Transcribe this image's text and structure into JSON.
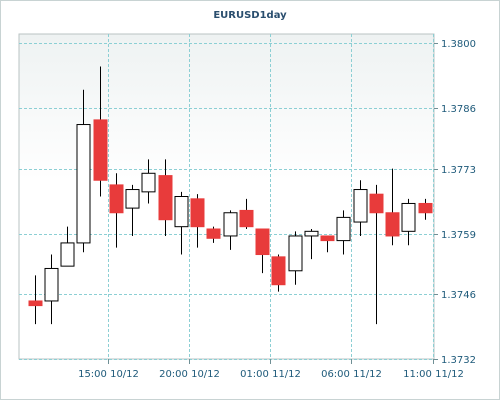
{
  "chart_data": {
    "type": "candlestick",
    "title": "EURUSD1day",
    "xlabel": "",
    "ylabel": "",
    "ylim": [
      1.3732,
      1.3802
    ],
    "yticks": [
      "1.3800",
      "1.3786",
      "1.3773",
      "1.3759",
      "1.3746",
      "1.3732"
    ],
    "xticks": [
      "15:00 10/12",
      "20:00 10/12",
      "01:00 11/12",
      "06:00 11/12",
      "11:00 11/12"
    ],
    "xtick_positions": [
      4.5,
      9.5,
      14.5,
      19.5,
      24.5
    ],
    "grid": true,
    "y_axis_side": "right",
    "bullish_color": "#ffffff",
    "bearish_color": "#e83b3b",
    "outline_color": "#000000",
    "candles": [
      {
        "open": 1.37445,
        "high": 1.375,
        "low": 1.37395,
        "close": 1.37435
      },
      {
        "open": 1.37445,
        "high": 1.37545,
        "low": 1.37395,
        "close": 1.37515
      },
      {
        "open": 1.3752,
        "high": 1.37605,
        "low": 1.3752,
        "close": 1.3757
      },
      {
        "open": 1.3757,
        "high": 1.379,
        "low": 1.3755,
        "close": 1.37825
      },
      {
        "open": 1.37835,
        "high": 1.3795,
        "low": 1.3767,
        "close": 1.37705
      },
      {
        "open": 1.37695,
        "high": 1.3772,
        "low": 1.3756,
        "close": 1.37635
      },
      {
        "open": 1.37645,
        "high": 1.37695,
        "low": 1.37585,
        "close": 1.37685
      },
      {
        "open": 1.3768,
        "high": 1.3775,
        "low": 1.37655,
        "close": 1.3772
      },
      {
        "open": 1.37715,
        "high": 1.3775,
        "low": 1.37585,
        "close": 1.3762
      },
      {
        "open": 1.37605,
        "high": 1.3768,
        "low": 1.37545,
        "close": 1.3767
      },
      {
        "open": 1.37665,
        "high": 1.37675,
        "low": 1.3756,
        "close": 1.37605
      },
      {
        "open": 1.376,
        "high": 1.37605,
        "low": 1.3757,
        "close": 1.3758
      },
      {
        "open": 1.37585,
        "high": 1.3764,
        "low": 1.37555,
        "close": 1.37635
      },
      {
        "open": 1.3764,
        "high": 1.37665,
        "low": 1.376,
        "close": 1.37605
      },
      {
        "open": 1.376,
        "high": 1.376,
        "low": 1.37505,
        "close": 1.37545
      },
      {
        "open": 1.3754,
        "high": 1.37545,
        "low": 1.37465,
        "close": 1.3748
      },
      {
        "open": 1.3751,
        "high": 1.37595,
        "low": 1.3748,
        "close": 1.37585
      },
      {
        "open": 1.37585,
        "high": 1.376,
        "low": 1.37535,
        "close": 1.37595
      },
      {
        "open": 1.37585,
        "high": 1.37585,
        "low": 1.3755,
        "close": 1.37575
      },
      {
        "open": 1.37575,
        "high": 1.3764,
        "low": 1.37545,
        "close": 1.37625
      },
      {
        "open": 1.37615,
        "high": 1.37705,
        "low": 1.37585,
        "close": 1.37685
      },
      {
        "open": 1.37675,
        "high": 1.37695,
        "low": 1.37395,
        "close": 1.37635
      },
      {
        "open": 1.37635,
        "high": 1.3773,
        "low": 1.37565,
        "close": 1.37585
      },
      {
        "open": 1.37595,
        "high": 1.37665,
        "low": 1.37565,
        "close": 1.37655
      },
      {
        "open": 1.37655,
        "high": 1.37665,
        "low": 1.3762,
        "close": 1.37635
      }
    ]
  }
}
